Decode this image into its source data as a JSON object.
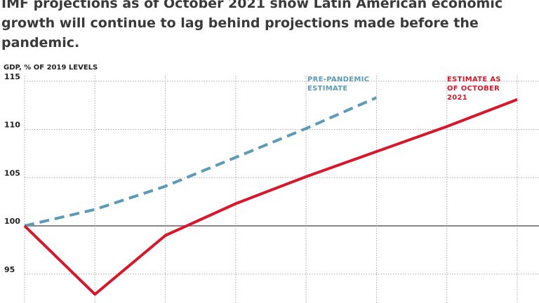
{
  "chart_data": {
    "type": "line",
    "title": "IMF projections as of October 2021 show Latin American economic growth will continue to lag behind projections made before the pandemic.",
    "y_axis_label": "GDP, % OF 2019 LEVELS",
    "categories": [
      null,
      null,
      null,
      null,
      null,
      null,
      null,
      null
    ],
    "series": [
      {
        "name": "PRE-PANDEMIC ESTIMATE",
        "color": "#5b9ab8",
        "dashed": true,
        "values": [
          100,
          101.7,
          104.1,
          107.1,
          110.1,
          113.3,
          null,
          null
        ]
      },
      {
        "name": "ESTIMATE AS OF OCTOBER 2021",
        "color": "#d7182a",
        "dashed": false,
        "values": [
          100,
          92.9,
          99.0,
          102.3,
          105.1,
          107.7,
          110.3,
          113.1
        ]
      }
    ],
    "ylim": [
      92,
      116
    ],
    "yticks": [
      95,
      100,
      105,
      110,
      115
    ],
    "grid": true
  }
}
